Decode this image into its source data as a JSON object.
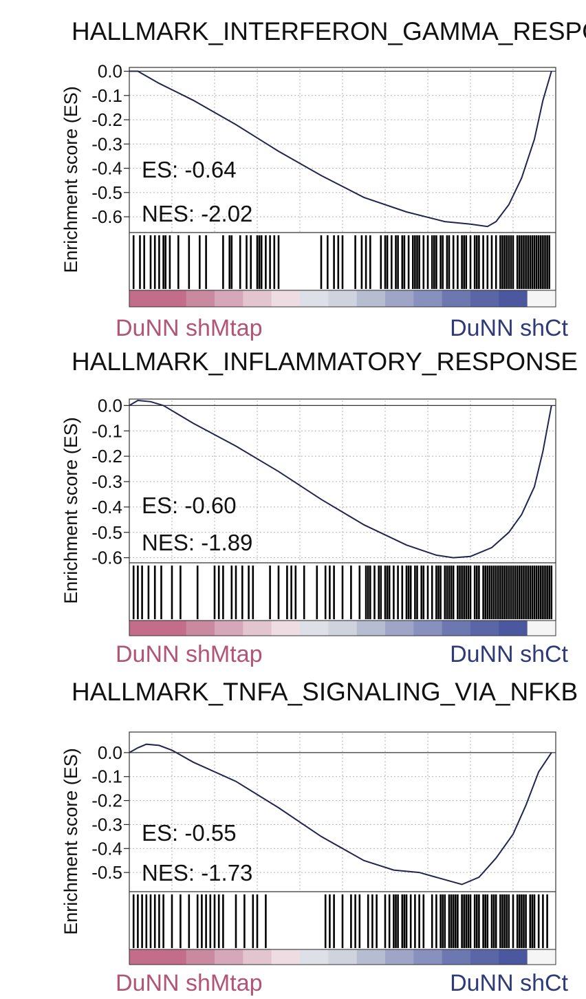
{
  "chart_data": [
    {
      "type": "line",
      "title": "HALLMARK_INTERFERON_GAMMA_RESPONSE",
      "ylabel": "Enrichment score (ES)",
      "yticks": [
        "0.0",
        "-0.1",
        "-0.2",
        "-0.3",
        "-0.4",
        "-0.5",
        "-0.6"
      ],
      "ylim": [
        -0.665,
        0.01
      ],
      "xlim": [
        0,
        1
      ],
      "es_label": "ES: -0.64",
      "nes_label": "NES: -2.02",
      "left_label": "DuNN shMtap",
      "right_label": "DuNN shCt",
      "curve": [
        [
          0,
          0
        ],
        [
          0.02,
          0.0
        ],
        [
          0.07,
          -0.05
        ],
        [
          0.15,
          -0.12
        ],
        [
          0.25,
          -0.22
        ],
        [
          0.35,
          -0.33
        ],
        [
          0.45,
          -0.43
        ],
        [
          0.55,
          -0.52
        ],
        [
          0.65,
          -0.58
        ],
        [
          0.74,
          -0.62
        ],
        [
          0.8,
          -0.63
        ],
        [
          0.84,
          -0.64
        ],
        [
          0.86,
          -0.62
        ],
        [
          0.89,
          -0.55
        ],
        [
          0.92,
          -0.44
        ],
        [
          0.95,
          -0.28
        ],
        [
          0.97,
          -0.12
        ],
        [
          0.99,
          0.0
        ]
      ],
      "hits": [
        0.01,
        0.025,
        0.035,
        0.05,
        0.06,
        0.07,
        0.08,
        0.085,
        0.095,
        0.115,
        0.14,
        0.165,
        0.18,
        0.22,
        0.235,
        0.24,
        0.26,
        0.275,
        0.285,
        0.3,
        0.305,
        0.31,
        0.32,
        0.33,
        0.34,
        0.35,
        0.45,
        0.465,
        0.48,
        0.49,
        0.5,
        0.53,
        0.545,
        0.555,
        0.565,
        0.59,
        0.6,
        0.605,
        0.615,
        0.625,
        0.63,
        0.64,
        0.645,
        0.655,
        0.665,
        0.67,
        0.675,
        0.68,
        0.69,
        0.7,
        0.71,
        0.715,
        0.72,
        0.73,
        0.735,
        0.745,
        0.75,
        0.76,
        0.77,
        0.78,
        0.785,
        0.79,
        0.8,
        0.81,
        0.815,
        0.82,
        0.83,
        0.84,
        0.85,
        0.86,
        0.87,
        0.875,
        0.88,
        0.885,
        0.89,
        0.895,
        0.9,
        0.91,
        0.915,
        0.92,
        0.925,
        0.93,
        0.935,
        0.94,
        0.945,
        0.95,
        0.955,
        0.96,
        0.965,
        0.97,
        0.975,
        0.98,
        0.985
      ],
      "rank_colors": [
        "#c46d8b",
        "#c46d8b",
        "#c98aa0",
        "#d6a7b8",
        "#e3c5d0",
        "#eddde3",
        "#dde0e6",
        "#cfd3dd",
        "#b7bdd1",
        "#9ea5c6",
        "#8890bd",
        "#6e78b0",
        "#5b66a7",
        "#4b579f",
        "#f5f5f5"
      ]
    },
    {
      "type": "line",
      "title": "HALLMARK_INFLAMMATORY_RESPONSE",
      "ylabel": "Enrichment score (ES)",
      "yticks": [
        "0.0",
        "-0.1",
        "-0.2",
        "-0.3",
        "-0.4",
        "-0.5",
        "-0.6"
      ],
      "ylim": [
        -0.62,
        0.02
      ],
      "xlim": [
        0,
        1
      ],
      "es_label": "ES: -0.60",
      "nes_label": "NES: -1.89",
      "left_label": "DuNN shMtap",
      "right_label": "DuNN shCt",
      "curve": [
        [
          0,
          0
        ],
        [
          0.02,
          0.02
        ],
        [
          0.05,
          0.015
        ],
        [
          0.08,
          0.0
        ],
        [
          0.15,
          -0.07
        ],
        [
          0.25,
          -0.16
        ],
        [
          0.35,
          -0.26
        ],
        [
          0.45,
          -0.37
        ],
        [
          0.55,
          -0.47
        ],
        [
          0.65,
          -0.55
        ],
        [
          0.72,
          -0.59
        ],
        [
          0.76,
          -0.6
        ],
        [
          0.8,
          -0.595
        ],
        [
          0.85,
          -0.56
        ],
        [
          0.89,
          -0.5
        ],
        [
          0.92,
          -0.43
        ],
        [
          0.95,
          -0.32
        ],
        [
          0.97,
          -0.18
        ],
        [
          0.99,
          0.0
        ]
      ],
      "hits": [
        0.01,
        0.02,
        0.03,
        0.045,
        0.06,
        0.075,
        0.1,
        0.12,
        0.16,
        0.2,
        0.21,
        0.22,
        0.24,
        0.25,
        0.265,
        0.28,
        0.29,
        0.33,
        0.35,
        0.37,
        0.38,
        0.39,
        0.41,
        0.44,
        0.46,
        0.47,
        0.48,
        0.5,
        0.52,
        0.54,
        0.555,
        0.56,
        0.565,
        0.575,
        0.585,
        0.59,
        0.6,
        0.605,
        0.61,
        0.62,
        0.63,
        0.64,
        0.65,
        0.655,
        0.66,
        0.67,
        0.675,
        0.685,
        0.69,
        0.7,
        0.71,
        0.72,
        0.725,
        0.73,
        0.74,
        0.745,
        0.75,
        0.755,
        0.76,
        0.77,
        0.775,
        0.78,
        0.785,
        0.79,
        0.795,
        0.8,
        0.81,
        0.815,
        0.82,
        0.83,
        0.835,
        0.84,
        0.845,
        0.85,
        0.855,
        0.86,
        0.865,
        0.87,
        0.875,
        0.88,
        0.885,
        0.89,
        0.895,
        0.9,
        0.905,
        0.91,
        0.915,
        0.92,
        0.925,
        0.93,
        0.935,
        0.94,
        0.945,
        0.95,
        0.955,
        0.96,
        0.965,
        0.97,
        0.975,
        0.98,
        0.985,
        0.99
      ],
      "rank_colors": [
        "#c46d8b",
        "#c46d8b",
        "#c98aa0",
        "#d6a7b8",
        "#e3c5d0",
        "#eddde3",
        "#dde0e6",
        "#cfd3dd",
        "#b7bdd1",
        "#9ea5c6",
        "#8890bd",
        "#6e78b0",
        "#5b66a7",
        "#4b579f",
        "#f5f5f5"
      ]
    },
    {
      "type": "line",
      "title": "HALLMARK_TNFA_SIGNALING_VIA_NFKB",
      "ylabel": "Enrichment score (ES)",
      "yticks": [
        "0.0",
        "-0.1",
        "-0.2",
        "-0.3",
        "-0.4",
        "-0.5"
      ],
      "ylim": [
        -0.58,
        0.08
      ],
      "xlim": [
        0,
        1
      ],
      "es_label": "ES: -0.55",
      "nes_label": "NES: -1.73",
      "left_label": "DuNN shMtap",
      "right_label": "DuNN shCt",
      "curve": [
        [
          0,
          0
        ],
        [
          0.02,
          0.02
        ],
        [
          0.04,
          0.035
        ],
        [
          0.07,
          0.03
        ],
        [
          0.1,
          0.01
        ],
        [
          0.15,
          -0.04
        ],
        [
          0.25,
          -0.12
        ],
        [
          0.35,
          -0.23
        ],
        [
          0.45,
          -0.35
        ],
        [
          0.55,
          -0.45
        ],
        [
          0.62,
          -0.49
        ],
        [
          0.68,
          -0.5
        ],
        [
          0.74,
          -0.53
        ],
        [
          0.78,
          -0.55
        ],
        [
          0.82,
          -0.52
        ],
        [
          0.86,
          -0.44
        ],
        [
          0.9,
          -0.34
        ],
        [
          0.93,
          -0.22
        ],
        [
          0.96,
          -0.08
        ],
        [
          0.99,
          0.0
        ]
      ],
      "hits": [
        0.01,
        0.02,
        0.03,
        0.04,
        0.05,
        0.06,
        0.07,
        0.08,
        0.1,
        0.12,
        0.14,
        0.16,
        0.17,
        0.18,
        0.19,
        0.2,
        0.21,
        0.22,
        0.25,
        0.27,
        0.29,
        0.3,
        0.32,
        0.46,
        0.47,
        0.48,
        0.5,
        0.52,
        0.53,
        0.54,
        0.56,
        0.57,
        0.58,
        0.6,
        0.61,
        0.62,
        0.625,
        0.63,
        0.64,
        0.645,
        0.65,
        0.66,
        0.67,
        0.68,
        0.69,
        0.71,
        0.72,
        0.73,
        0.735,
        0.74,
        0.75,
        0.755,
        0.76,
        0.765,
        0.77,
        0.78,
        0.785,
        0.79,
        0.795,
        0.8,
        0.81,
        0.815,
        0.82,
        0.83,
        0.835,
        0.84,
        0.85,
        0.855,
        0.86,
        0.87,
        0.875,
        0.88,
        0.885,
        0.89,
        0.9,
        0.91,
        0.915,
        0.92,
        0.925,
        0.93,
        0.94,
        0.945,
        0.95,
        0.96,
        0.97,
        0.98
      ],
      "rank_colors": [
        "#c46d8b",
        "#c46d8b",
        "#c98aa0",
        "#d6a7b8",
        "#e3c5d0",
        "#eddde3",
        "#dde0e6",
        "#cfd3dd",
        "#b7bdd1",
        "#9ea5c6",
        "#8890bd",
        "#6e78b0",
        "#5b66a7",
        "#4b579f",
        "#f5f5f5"
      ]
    }
  ],
  "colors": {
    "curve": "#1f2550",
    "left_label": "#b25476",
    "right_label": "#2f3a78",
    "grid": "#b0b0b0"
  }
}
